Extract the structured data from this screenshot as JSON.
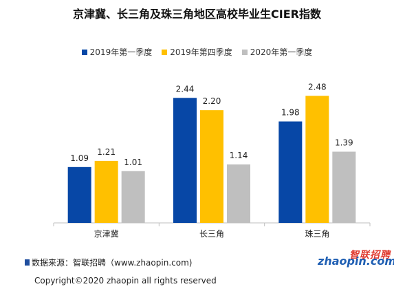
{
  "chart_data": {
    "type": "bar",
    "title": "京津冀、长三角及珠三角地区高校毕业生CIER指数",
    "categories": [
      "京津冀",
      "长三角",
      "珠三角"
    ],
    "series": [
      {
        "name": "2019年第一季度",
        "color": "#0747a6",
        "values": [
          1.09,
          2.44,
          1.98
        ]
      },
      {
        "name": "2019年第四季度",
        "color": "#ffc000",
        "values": [
          1.21,
          2.2,
          2.48
        ]
      },
      {
        "name": "2020年第一季度",
        "color": "#bfbfbf",
        "values": [
          1.01,
          1.14,
          1.39
        ]
      }
    ],
    "ylim": [
      0,
      3
    ],
    "grid": false,
    "legend_position": "top-center",
    "data_labels": true
  },
  "footer": {
    "source": "数据来源：智联招聘（www.zhaopin.com)",
    "copyright": "Copyright©2020 zhaopin all rights reserved"
  },
  "logo": {
    "text_cn": "智联招聘",
    "text_en": "zhaopin.com"
  }
}
